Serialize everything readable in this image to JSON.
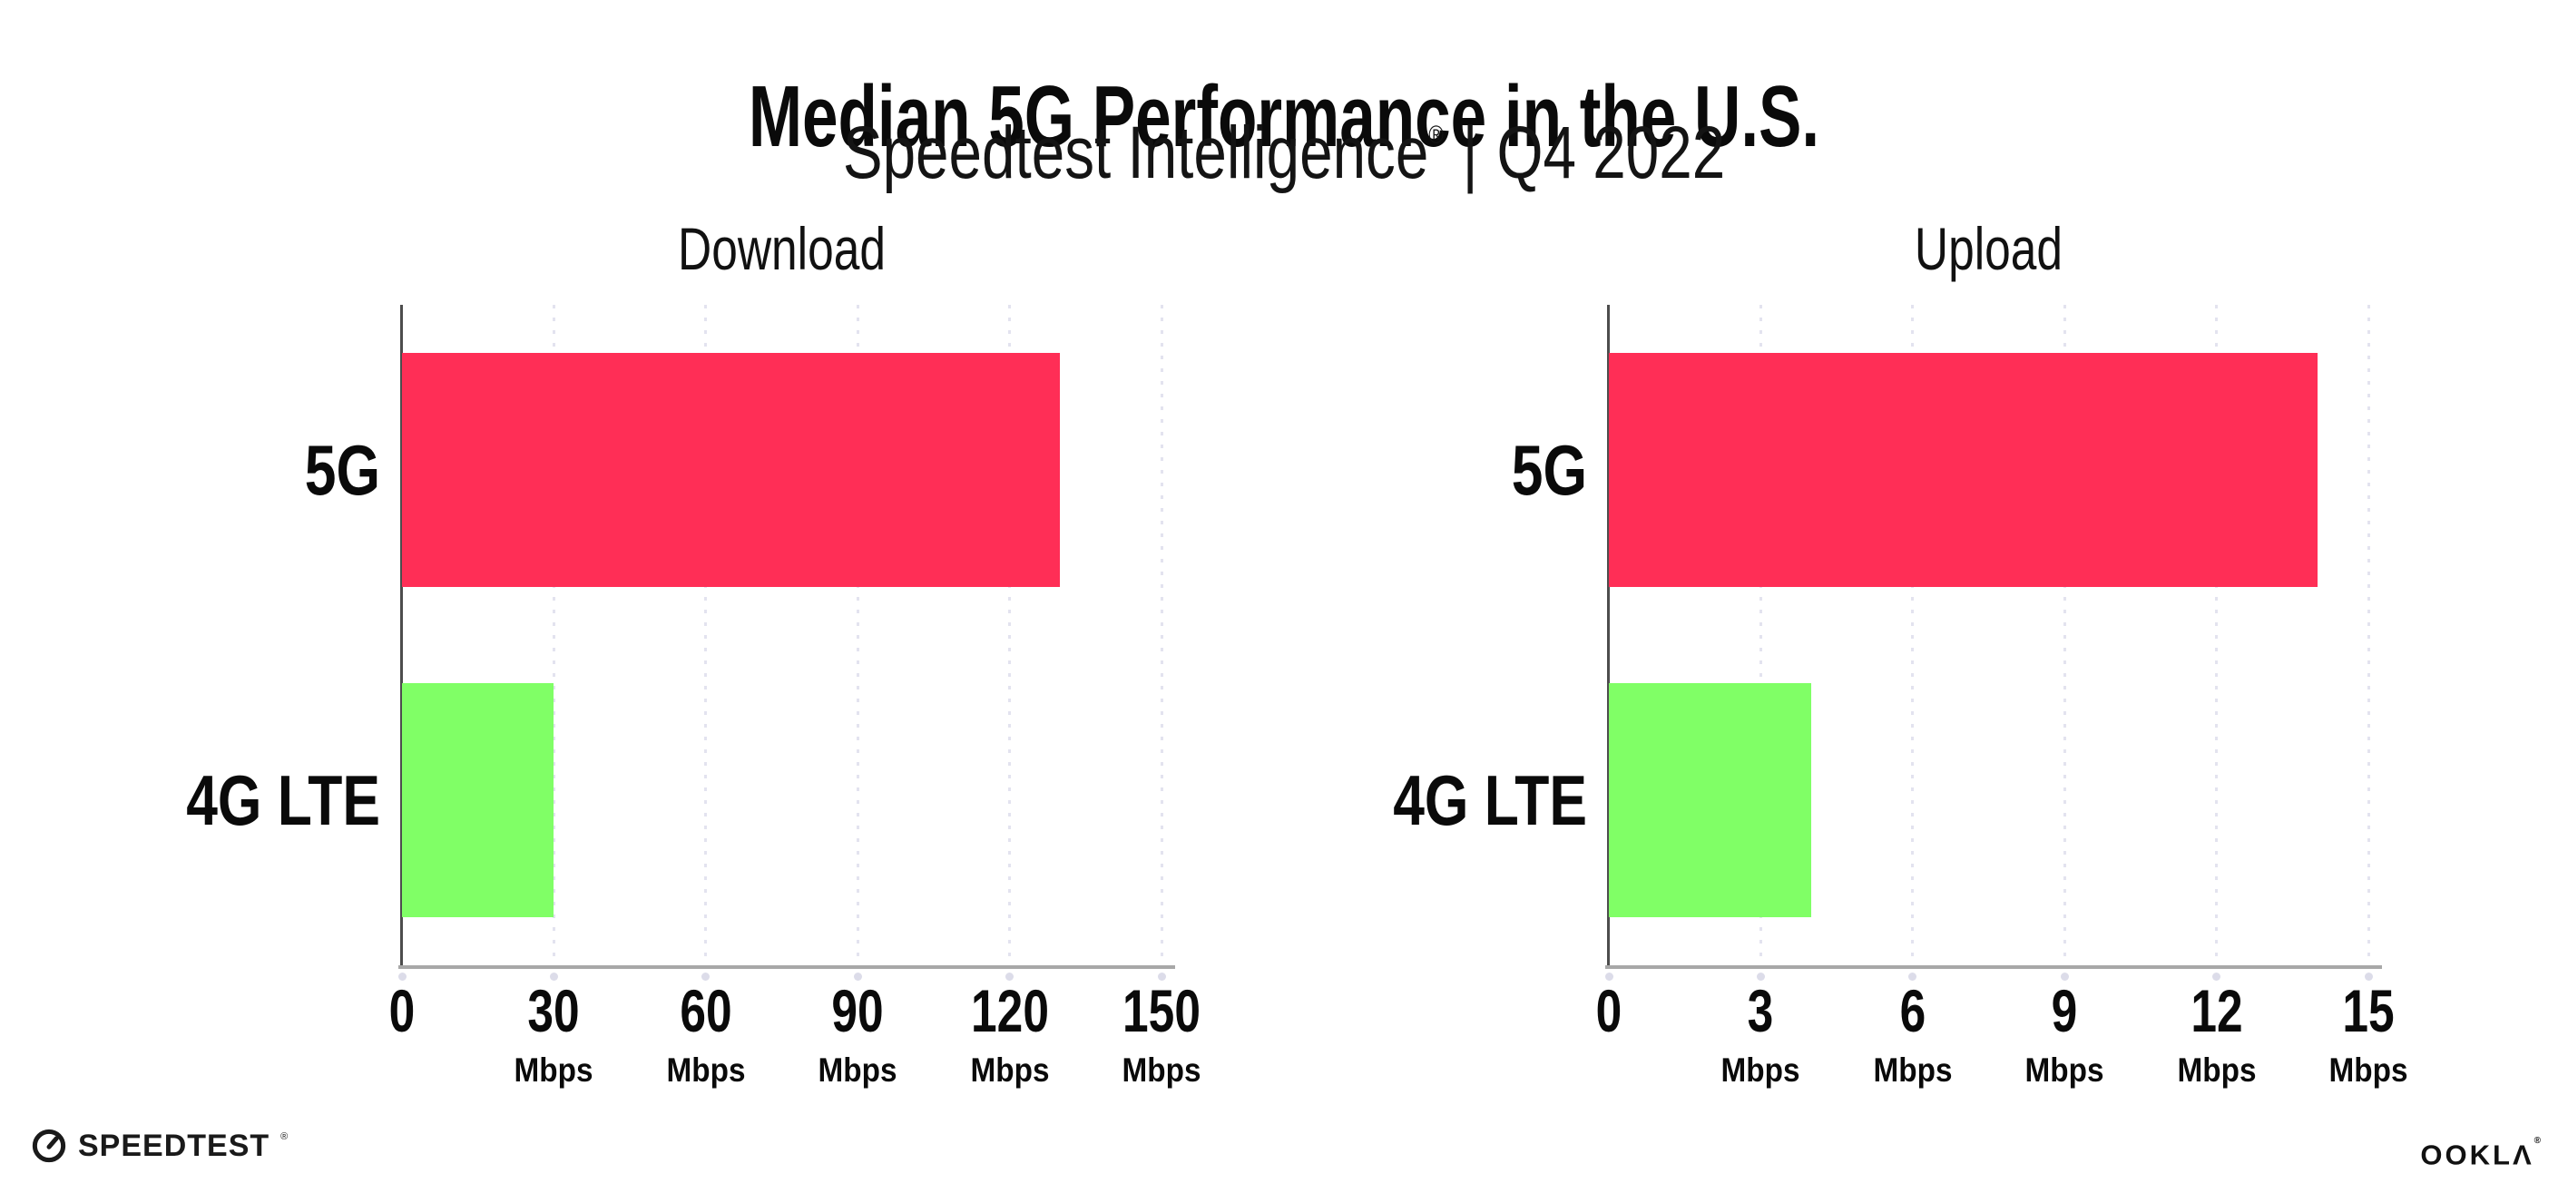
{
  "header": {
    "title": "Median 5G Performance in the U.S.",
    "subtitle_brand": "Speedtest Intelligence",
    "subtitle_reg": "®",
    "subtitle_separator": "|",
    "subtitle_period": "Q4 2022"
  },
  "footer": {
    "speedtest_logo_text": "SPEEDTEST",
    "speedtest_trademark": "®",
    "ookla_logo_text": "OOKLΛ",
    "ookla_trademark": "®"
  },
  "colors": {
    "bar_5g": "#ff2e56",
    "bar_4g_lte": "#80ff66",
    "gridline": "#e3e3ef",
    "axis_line": "#a8a8a8",
    "y_spine": "#4d4d4d",
    "tick_dot": "#dcdce9",
    "text": "#0a0a0a"
  },
  "chart_data": [
    {
      "type": "bar",
      "orientation": "horizontal",
      "title": "Download",
      "categories": [
        "5G",
        "4G LTE"
      ],
      "values": [
        130,
        30
      ],
      "unit": "Mbps",
      "xlabel": "",
      "ylabel": "",
      "xlim": [
        0,
        150
      ],
      "xticks": [
        0,
        30,
        60,
        90,
        120,
        150
      ],
      "grid": "dotted-vertical",
      "legend": "none",
      "series_colors": [
        "#ff2e56",
        "#80ff66"
      ]
    },
    {
      "type": "bar",
      "orientation": "horizontal",
      "title": "Upload",
      "categories": [
        "5G",
        "4G LTE"
      ],
      "values": [
        14,
        4
      ],
      "unit": "Mbps",
      "xlabel": "",
      "ylabel": "",
      "xlim": [
        0,
        15
      ],
      "xticks": [
        0,
        3,
        6,
        9,
        12,
        15
      ],
      "grid": "dotted-vertical",
      "legend": "none",
      "series_colors": [
        "#ff2e56",
        "#80ff66"
      ]
    }
  ]
}
